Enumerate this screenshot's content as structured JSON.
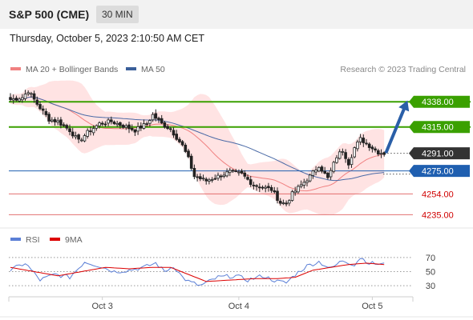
{
  "header": {
    "title": "S&P 500 (CME)",
    "interval": "30 MIN"
  },
  "datetime": "Thursday, October 5, 2023 2:10:50 AM CET",
  "legend": [
    {
      "label": "MA 20 + Bollinger Bands",
      "color": "#f08080"
    },
    {
      "label": "MA 50",
      "color": "#3a5f9a"
    }
  ],
  "copyright": "Research © 2023 Trading Central",
  "rsi_legend": [
    {
      "label": "RSI",
      "color": "#5b7fd6"
    },
    {
      "label": "9MA",
      "color": "#dd0000"
    }
  ],
  "colors": {
    "green": "#3aa000",
    "blue": "#1f5fb0",
    "red": "#e06060",
    "arrow": "#2a5fa8",
    "dark": "#333333"
  },
  "chart_data": [
    {
      "type": "candlestick",
      "title": "S&P 500 (CME)",
      "ylim": [
        4228,
        4352
      ],
      "x_ticks": [
        "Oct 3",
        "Oct 4",
        "Oct 5"
      ],
      "levels": [
        {
          "value": 4338.0,
          "label": "4338.00",
          "style": "resistance"
        },
        {
          "value": 4315.0,
          "label": "4315.00",
          "style": "resistance"
        },
        {
          "value": 4291.0,
          "label": "4291.00",
          "style": "last"
        },
        {
          "value": 4275.0,
          "label": "4275.00",
          "style": "pivot"
        },
        {
          "value": 4254.0,
          "label": "4254.00",
          "style": "support"
        },
        {
          "value": 4235.0,
          "label": "4235.00",
          "style": "support"
        }
      ],
      "close_anchors": [
        [
          0,
          4340
        ],
        [
          4,
          4342
        ],
        [
          6,
          4348
        ],
        [
          9,
          4336
        ],
        [
          13,
          4322
        ],
        [
          16,
          4320
        ],
        [
          20,
          4312
        ],
        [
          23,
          4302
        ],
        [
          26,
          4310
        ],
        [
          30,
          4318
        ],
        [
          34,
          4320
        ],
        [
          38,
          4316
        ],
        [
          42,
          4312
        ],
        [
          46,
          4318
        ],
        [
          48,
          4326
        ],
        [
          51,
          4318
        ],
        [
          54,
          4313
        ],
        [
          58,
          4298
        ],
        [
          60,
          4286
        ],
        [
          62,
          4270
        ],
        [
          66,
          4266
        ],
        [
          70,
          4270
        ],
        [
          74,
          4274
        ],
        [
          78,
          4272
        ],
        [
          82,
          4262
        ],
        [
          85,
          4260
        ],
        [
          88,
          4258
        ],
        [
          91,
          4246
        ],
        [
          93,
          4245
        ],
        [
          95,
          4254
        ],
        [
          98,
          4262
        ],
        [
          101,
          4270
        ],
        [
          104,
          4280
        ],
        [
          107,
          4268
        ],
        [
          110,
          4288
        ],
        [
          112,
          4294
        ],
        [
          114,
          4282
        ],
        [
          116,
          4296
        ],
        [
          118,
          4304
        ],
        [
          120,
          4300
        ],
        [
          124,
          4292
        ],
        [
          126,
          4291
        ]
      ],
      "forecast": {
        "from": 4291.0,
        "to": 4338.0
      }
    },
    {
      "type": "line",
      "title": "RSI",
      "ylim": [
        20,
        80
      ],
      "y_ticks": [
        70,
        50,
        30
      ],
      "series": [
        {
          "name": "RSI",
          "anchors": [
            [
              0,
              52
            ],
            [
              5,
              62
            ],
            [
              10,
              38
            ],
            [
              15,
              46
            ],
            [
              20,
              42
            ],
            [
              25,
              64
            ],
            [
              30,
              58
            ],
            [
              35,
              50
            ],
            [
              40,
              52
            ],
            [
              45,
              56
            ],
            [
              49,
              62
            ],
            [
              52,
              50
            ],
            [
              55,
              58
            ],
            [
              58,
              42
            ],
            [
              60,
              36
            ],
            [
              64,
              30
            ],
            [
              70,
              42
            ],
            [
              76,
              44
            ],
            [
              80,
              38
            ],
            [
              85,
              44
            ],
            [
              90,
              36
            ],
            [
              93,
              34
            ],
            [
              96,
              46
            ],
            [
              100,
              58
            ],
            [
              104,
              64
            ],
            [
              108,
              54
            ],
            [
              112,
              66
            ],
            [
              116,
              60
            ],
            [
              118,
              70
            ],
            [
              121,
              62
            ],
            [
              126,
              60
            ]
          ]
        },
        {
          "name": "9MA",
          "anchors": [
            [
              0,
              56
            ],
            [
              8,
              50
            ],
            [
              16,
              44
            ],
            [
              24,
              50
            ],
            [
              32,
              56
            ],
            [
              40,
              54
            ],
            [
              48,
              56
            ],
            [
              54,
              56
            ],
            [
              60,
              46
            ],
            [
              66,
              36
            ],
            [
              74,
              38
            ],
            [
              82,
              40
            ],
            [
              90,
              40
            ],
            [
              96,
              42
            ],
            [
              102,
              52
            ],
            [
              108,
              56
            ],
            [
              114,
              60
            ],
            [
              120,
              62
            ],
            [
              126,
              60
            ]
          ]
        }
      ]
    }
  ]
}
